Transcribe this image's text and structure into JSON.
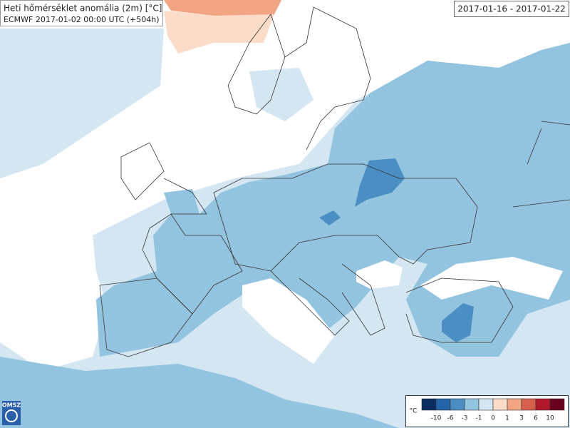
{
  "header": {
    "title": "Heti hőmérséklet anomália (2m) [°C]",
    "run": "ECMWF 2017-01-02 00:00 UTC (+504h)"
  },
  "period": "2017-01-16 - 2017-01-22",
  "legend": {
    "unit": "°C",
    "labels": [
      "-10",
      "-6",
      "-3",
      "-1",
      "0",
      "1",
      "3",
      "6",
      "10"
    ],
    "colors": [
      "#0b2c5f",
      "#2464a8",
      "#4a8ec4",
      "#92c4df",
      "#d3e6f2",
      "#fbdcc9",
      "#f2a582",
      "#d6604d",
      "#b2182b",
      "#67001f"
    ]
  },
  "logo": "OMSZ"
}
